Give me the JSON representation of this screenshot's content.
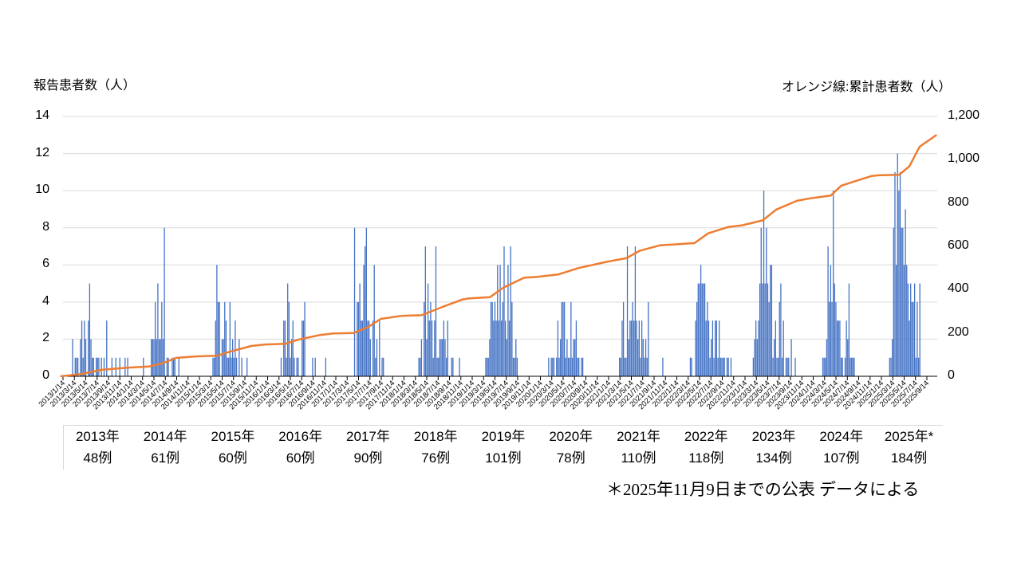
{
  "header": {
    "left_axis_title": "報告患者数（人）",
    "right_axis_title": "オレンジ線:累計患者数（人）"
  },
  "footnote": "＊2025年11月9日までの公表 データによる",
  "chart_data": {
    "type": "bar+line",
    "bar_color": "#4472c4",
    "line_color": "#ed7d31",
    "grid": true,
    "left_axis": {
      "min": 0,
      "max": 14,
      "ticks": [
        "0",
        "2",
        "4",
        "6",
        "8",
        "10",
        "12",
        "14"
      ]
    },
    "right_axis": {
      "min": 0,
      "max": 1200,
      "ticks": [
        "0",
        "200",
        "400",
        "600",
        "800",
        "1,000",
        "1,200"
      ]
    },
    "x_tick_labels": [
      "2013/1/14",
      "2013/3/14",
      "2013/5/14",
      "2013/7/14",
      "2013/9/14",
      "2013/11/14",
      "2014/1/14",
      "2014/3/14",
      "2014/5/14",
      "2014/7/14",
      "2014/9/14",
      "2014/11/14",
      "2015/1/14",
      "2015/3/14",
      "2015/5/14",
      "2015/7/14",
      "2015/9/14",
      "2015/11/14",
      "2016/1/14",
      "2016/3/14",
      "2016/5/14",
      "2016/7/14",
      "2016/9/14",
      "2016/11/14",
      "2017/1/14",
      "2017/3/14",
      "2017/5/14",
      "2017/7/14",
      "2017/9/14",
      "2017/11/14",
      "2018/1/14",
      "2018/3/14",
      "2018/5/14",
      "2018/7/14",
      "2018/9/14",
      "2018/11/14",
      "2019/1/14",
      "2019/3/14",
      "2019/5/14",
      "2019/7/14",
      "2019/9/14",
      "2019/11/14",
      "2020/1/14",
      "2020/3/14",
      "2020/5/14",
      "2020/7/14",
      "2020/9/14",
      "2020/11/14",
      "2021/1/14",
      "2021/3/14",
      "2021/5/14",
      "2021/7/14",
      "2021/9/14",
      "2021/11/14",
      "2022/1/14",
      "2022/3/14",
      "2022/5/14",
      "2022/7/14",
      "2022/9/14",
      "2022/11/14",
      "2023/1/14",
      "2023/3/14",
      "2023/5/14",
      "2023/7/14",
      "2023/9/14",
      "2023/11/14",
      "2024/1/14",
      "2024/3/14",
      "2024/5/14",
      "2024/7/14",
      "2024/9/14",
      "2024/11/14",
      "2025/1/14",
      "2025/3/14",
      "2025/5/14",
      "2025/7/14",
      "2025/9/14"
    ],
    "weekly_reports": [
      {
        "year": 2013,
        "start_week": 4,
        "values": [
          0,
          0,
          0,
          0,
          0,
          2,
          0,
          1,
          1,
          1,
          0,
          2,
          3,
          1,
          3,
          2,
          0,
          3,
          5,
          2,
          1,
          1,
          0,
          1,
          1,
          1,
          0,
          1,
          0,
          1,
          0,
          3,
          0,
          0,
          0,
          1,
          0,
          0,
          1,
          0,
          0,
          1,
          0,
          0,
          0,
          1,
          0,
          1
        ]
      },
      {
        "year": 2014,
        "start_week": 8,
        "values": [
          0,
          0,
          0,
          1,
          0,
          0,
          0,
          0,
          0,
          2,
          2,
          2,
          4,
          2,
          5,
          2,
          2,
          4,
          2,
          8,
          0,
          1,
          1,
          0,
          0,
          1,
          1,
          1,
          0,
          0,
          1
        ]
      },
      {
        "year": 2015,
        "start_week": 12,
        "values": [
          1,
          1,
          3,
          6,
          4,
          4,
          0,
          2,
          2,
          4,
          3,
          1,
          1,
          4,
          1,
          2,
          1,
          3,
          1,
          0,
          2,
          0,
          1,
          0,
          0,
          0,
          1
        ]
      },
      {
        "year": 2016,
        "start_week": 12,
        "values": [
          1,
          0,
          3,
          3,
          1,
          5,
          4,
          1,
          2,
          3,
          1,
          0,
          1,
          1,
          0,
          0,
          3,
          3,
          4,
          0,
          0,
          0,
          0,
          0,
          1,
          0,
          1,
          0,
          0,
          0,
          0,
          0,
          0,
          0,
          1
        ]
      },
      {
        "year": 2017,
        "start_week": 12,
        "values": [
          0,
          0,
          0,
          0,
          8,
          0,
          4,
          4,
          5,
          3,
          3,
          6,
          7,
          8,
          3,
          3,
          2,
          0,
          3,
          6,
          1,
          2,
          0,
          3,
          0,
          1,
          1
        ]
      },
      {
        "year": 2018,
        "start_week": 12,
        "values": [
          0,
          1,
          1,
          2,
          0,
          4,
          7,
          2,
          5,
          3,
          4,
          3,
          1,
          3,
          7,
          1,
          1,
          2,
          2,
          2,
          3,
          2,
          1,
          3,
          0,
          0,
          1,
          1,
          0,
          0,
          0,
          0,
          1
        ]
      },
      {
        "year": 2019,
        "start_week": 12,
        "values": [
          1,
          1,
          1,
          2,
          4,
          4,
          3,
          4,
          3,
          6,
          3,
          6,
          3,
          4,
          7,
          3,
          2,
          6,
          3,
          7,
          4,
          1,
          1,
          2,
          1
        ]
      },
      {
        "year": 2020,
        "start_week": 8,
        "values": [
          1,
          0,
          1,
          1,
          1,
          0,
          1,
          3,
          1,
          2,
          4,
          4,
          4,
          1,
          2,
          1,
          1,
          4,
          1,
          2,
          2,
          3,
          1,
          1,
          0,
          1,
          1
        ]
      },
      {
        "year": 2021,
        "start_week": 10,
        "values": [
          1,
          1,
          3,
          4,
          1,
          1,
          7,
          2,
          3,
          3,
          4,
          3,
          7,
          3,
          2,
          3,
          1,
          3,
          2,
          1,
          2,
          1,
          4,
          0,
          0,
          0,
          0,
          0,
          0,
          0,
          0,
          0,
          0,
          1
        ]
      },
      {
        "year": 2022,
        "start_week": 12,
        "values": [
          1,
          1,
          0,
          0,
          3,
          4,
          5,
          5,
          6,
          5,
          5,
          5,
          3,
          4,
          3,
          1,
          2,
          3,
          1,
          3,
          3,
          1,
          3,
          1,
          1,
          1,
          1,
          0,
          1,
          1,
          0,
          1
        ]
      },
      {
        "year": 2023,
        "start_week": 8,
        "values": [
          1,
          2,
          3,
          2,
          3,
          5,
          8,
          5,
          10,
          5,
          8,
          5,
          4,
          6,
          6,
          1,
          2,
          3,
          1,
          1,
          4,
          5,
          1,
          3,
          0,
          1,
          1,
          1,
          0,
          2,
          0,
          0,
          1
        ]
      },
      {
        "year": 2024,
        "start_week": 8,
        "values": [
          0,
          1,
          1,
          1,
          2,
          7,
          4,
          6,
          4,
          10,
          5,
          4,
          3,
          3,
          3,
          1,
          1,
          0,
          1,
          3,
          2,
          5,
          1,
          1,
          1,
          1
        ]
      },
      {
        "year": 2025,
        "start_week": 8,
        "values": [
          1,
          1,
          2,
          8,
          11,
          6,
          12,
          10,
          11,
          8,
          8,
          6,
          9,
          6,
          5,
          3,
          5,
          4,
          4,
          5,
          1,
          4,
          1,
          5
        ]
      }
    ],
    "cumulative_line": [
      [
        2013.0,
        0
      ],
      [
        2013.3,
        10
      ],
      [
        2013.6,
        30
      ],
      [
        2014.0,
        40
      ],
      [
        2014.3,
        45
      ],
      [
        2014.5,
        60
      ],
      [
        2014.7,
        85
      ],
      [
        2015.0,
        92
      ],
      [
        2015.3,
        95
      ],
      [
        2015.5,
        115
      ],
      [
        2015.8,
        140
      ],
      [
        2016.0,
        147
      ],
      [
        2016.3,
        150
      ],
      [
        2016.5,
        170
      ],
      [
        2016.8,
        190
      ],
      [
        2017.0,
        198
      ],
      [
        2017.3,
        200
      ],
      [
        2017.5,
        225
      ],
      [
        2017.7,
        265
      ],
      [
        2018.0,
        279
      ],
      [
        2018.3,
        282
      ],
      [
        2018.6,
        320
      ],
      [
        2018.9,
        355
      ],
      [
        2019.0,
        360
      ],
      [
        2019.3,
        365
      ],
      [
        2019.5,
        410
      ],
      [
        2019.8,
        455
      ],
      [
        2020.0,
        459
      ],
      [
        2020.3,
        470
      ],
      [
        2020.6,
        500
      ],
      [
        2021.0,
        528
      ],
      [
        2021.3,
        545
      ],
      [
        2021.5,
        580
      ],
      [
        2021.8,
        605
      ],
      [
        2022.0,
        609
      ],
      [
        2022.3,
        615
      ],
      [
        2022.5,
        660
      ],
      [
        2022.8,
        690
      ],
      [
        2023.0,
        697
      ],
      [
        2023.3,
        720
      ],
      [
        2023.5,
        770
      ],
      [
        2023.8,
        810
      ],
      [
        2024.0,
        822
      ],
      [
        2024.3,
        835
      ],
      [
        2024.45,
        880
      ],
      [
        2024.7,
        905
      ],
      [
        2024.9,
        925
      ],
      [
        2025.0,
        928
      ],
      [
        2025.3,
        930
      ],
      [
        2025.45,
        970
      ],
      [
        2025.6,
        1060
      ],
      [
        2025.85,
        1115
      ]
    ],
    "annual_summary": [
      {
        "year": "2013年",
        "count": "48例"
      },
      {
        "year": "2014年",
        "count": "61例"
      },
      {
        "year": "2015年",
        "count": "60例"
      },
      {
        "year": "2016年",
        "count": "60例"
      },
      {
        "year": "2017年",
        "count": "90例"
      },
      {
        "year": "2018年",
        "count": "76例"
      },
      {
        "year": "2019年",
        "count": "101例"
      },
      {
        "year": "2020年",
        "count": "78例"
      },
      {
        "year": "2021年",
        "count": "110例"
      },
      {
        "year": "2022年",
        "count": "118例"
      },
      {
        "year": "2023年",
        "count": "134例"
      },
      {
        "year": "2024年",
        "count": "107例"
      },
      {
        "year": "2025年*",
        "count": "184例"
      }
    ]
  }
}
